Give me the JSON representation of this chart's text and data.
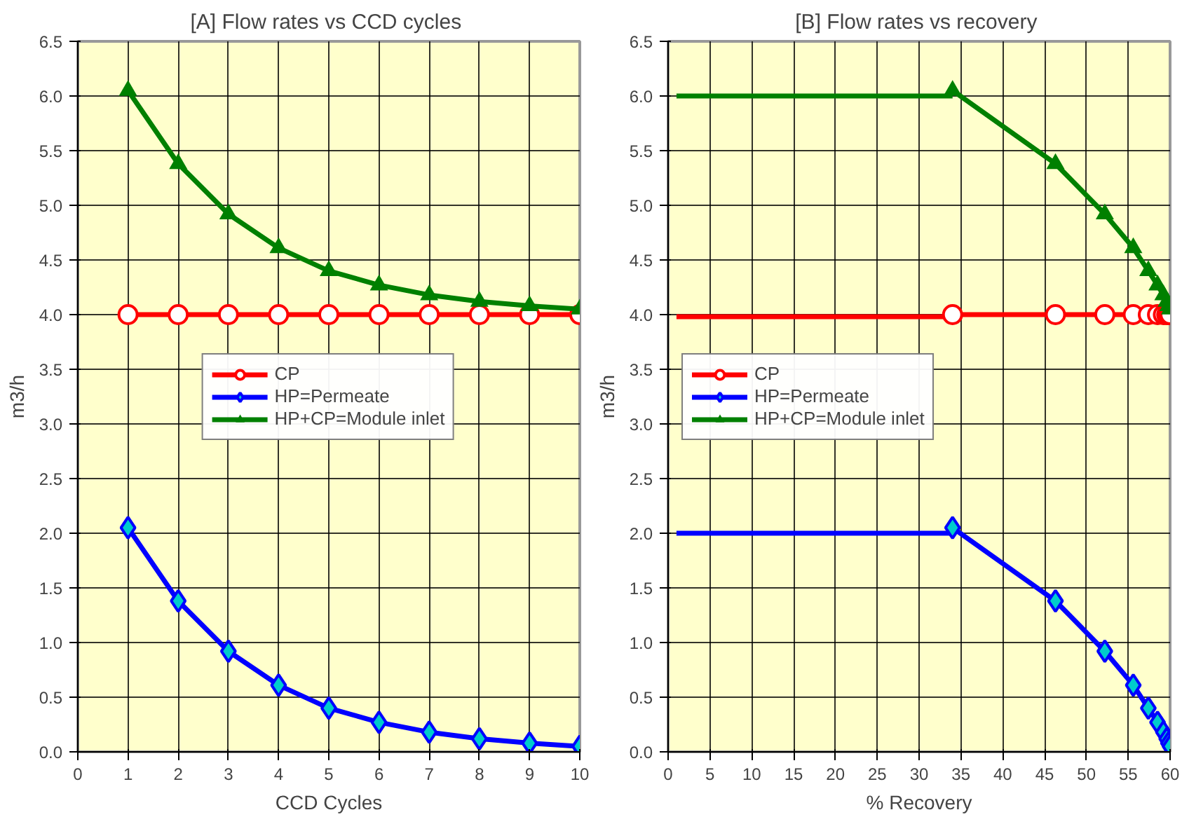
{
  "chart_data": [
    {
      "type": "line",
      "title": "[A] Flow rates  vs CCD cycles",
      "xlabel": "CCD Cycles",
      "ylabel": "m3/h",
      "x": [
        1,
        2,
        3,
        4,
        5,
        6,
        7,
        8,
        9,
        10
      ],
      "xlim": [
        0,
        10
      ],
      "xticks": [
        0,
        1,
        2,
        3,
        4,
        5,
        6,
        7,
        8,
        9,
        10
      ],
      "ylim": [
        0,
        6.5
      ],
      "yticks": [
        {
          "value": 0,
          "label": "0.0"
        },
        {
          "value": 0.5,
          "label": "0.5"
        },
        {
          "value": 1,
          "label": "1.0"
        },
        {
          "value": 1.5,
          "label": "1.5"
        },
        {
          "value": 2,
          "label": "2.0"
        },
        {
          "value": 2.5,
          "label": "2.5"
        },
        {
          "value": 3,
          "label": "3.0"
        },
        {
          "value": 3.5,
          "label": "3.5"
        },
        {
          "value": 4,
          "label": "4.0"
        },
        {
          "value": 4.5,
          "label": "4.5"
        },
        {
          "value": 5,
          "label": "5.0"
        },
        {
          "value": 5.5,
          "label": "5.5"
        },
        {
          "value": 6,
          "label": "6.0"
        },
        {
          "value": 6.5,
          "label": "6.5"
        }
      ],
      "grid": true,
      "legend": "center",
      "series": [
        {
          "name": "CP",
          "color": "#ff0000",
          "marker": "circle",
          "values": [
            4,
            4,
            4,
            4,
            4,
            4,
            4,
            4,
            4,
            4
          ]
        },
        {
          "name": "HP=Permeate",
          "color": "#0000ff",
          "marker": "diamond",
          "values": [
            2.05,
            1.38,
            0.92,
            0.61,
            0.4,
            0.27,
            0.18,
            0.12,
            0.08,
            0.05
          ]
        },
        {
          "name": "HP+CP=Module inlet",
          "color": "#008000",
          "marker": "triangle",
          "values": [
            6.05,
            5.38,
            4.92,
            4.61,
            4.4,
            4.27,
            4.18,
            4.12,
            4.08,
            4.05
          ]
        }
      ]
    },
    {
      "type": "line",
      "title": "[B] Flow rates  vs recovery",
      "xlabel": "% Recovery",
      "ylabel": "m3/h",
      "xlim": [
        0,
        60
      ],
      "xticks": [
        0,
        5,
        10,
        15,
        20,
        25,
        30,
        35,
        40,
        45,
        50,
        55,
        60
      ],
      "ylim": [
        0,
        6.5
      ],
      "yticks": [
        {
          "value": 0,
          "label": "0.0"
        },
        {
          "value": 0.5,
          "label": "0.5"
        },
        {
          "value": 1,
          "label": "1.0"
        },
        {
          "value": 1.5,
          "label": "1.5"
        },
        {
          "value": 2,
          "label": "2.0"
        },
        {
          "value": 2.5,
          "label": "2.5"
        },
        {
          "value": 3,
          "label": "3.0"
        },
        {
          "value": 3.5,
          "label": "3.5"
        },
        {
          "value": 4,
          "label": "4.0"
        },
        {
          "value": 4.5,
          "label": "4.5"
        },
        {
          "value": 5,
          "label": "5.0"
        },
        {
          "value": 5.5,
          "label": "5.5"
        },
        {
          "value": 6,
          "label": "6.0"
        },
        {
          "value": 6.5,
          "label": "6.5"
        }
      ],
      "grid": true,
      "legend": "center left",
      "series": [
        {
          "color": "#ff0000",
          "marker": "none",
          "x": [
            1,
            34
          ],
          "values": [
            3.98,
            3.98
          ]
        },
        {
          "color": "#0000ff",
          "marker": "none",
          "x": [
            1,
            34
          ],
          "values": [
            2.0,
            2.0
          ]
        },
        {
          "color": "#008000",
          "marker": "none",
          "x": [
            1,
            34
          ],
          "values": [
            6.0,
            6.0
          ]
        },
        {
          "name": "CP",
          "color": "#ff0000",
          "marker": "circle",
          "x": [
            34,
            46.3,
            52.2,
            55.6,
            57.4,
            58.5,
            59.2,
            59.6,
            59.8,
            60
          ],
          "values": [
            4,
            4,
            4,
            4,
            4,
            4,
            4,
            4,
            4,
            4
          ]
        },
        {
          "name": "HP=Permeate",
          "color": "#0000ff",
          "marker": "diamond",
          "x": [
            34,
            46.3,
            52.2,
            55.6,
            57.4,
            58.5,
            59.2,
            59.6,
            59.8,
            60
          ],
          "values": [
            2.05,
            1.38,
            0.92,
            0.61,
            0.4,
            0.27,
            0.18,
            0.12,
            0.08,
            0.05
          ]
        },
        {
          "name": "HP+CP=Module inlet",
          "color": "#008000",
          "marker": "triangle",
          "x": [
            34,
            46.3,
            52.2,
            55.6,
            57.4,
            58.5,
            59.2,
            59.6,
            59.8,
            60
          ],
          "values": [
            6.05,
            5.38,
            4.92,
            4.61,
            4.4,
            4.27,
            4.18,
            4.12,
            4.08,
            4.05
          ]
        }
      ]
    }
  ]
}
